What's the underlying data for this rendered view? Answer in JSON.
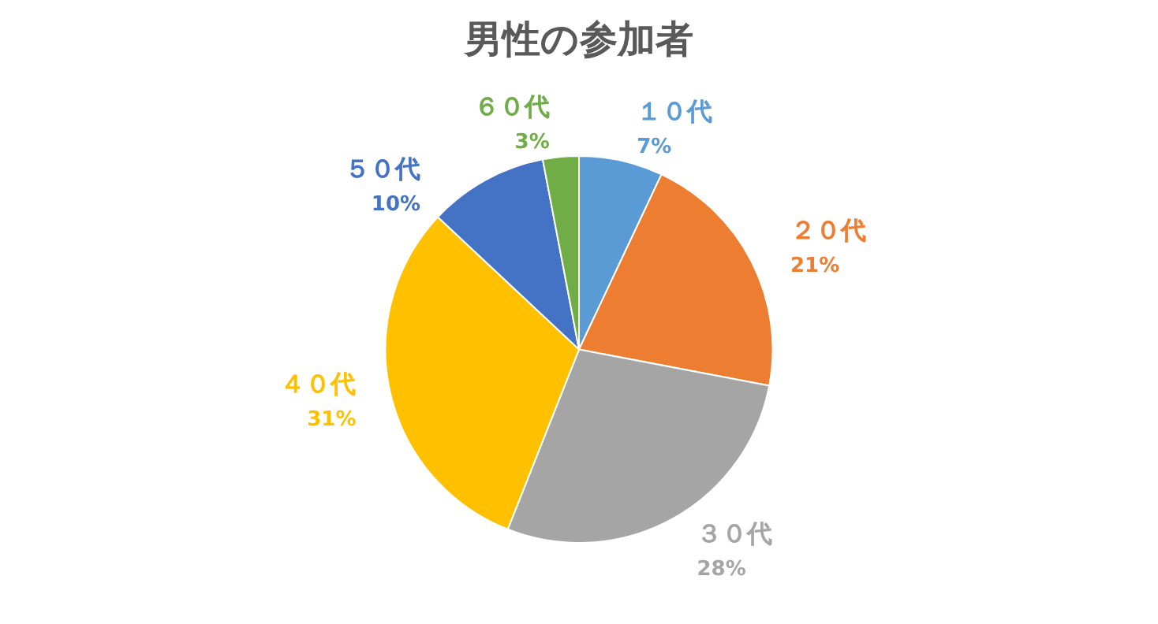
{
  "chart_data": {
    "type": "pie",
    "title": "男性の参加者",
    "categories": [
      "１０代",
      "２０代",
      "３０代",
      "４０代",
      "５０代",
      "６０代"
    ],
    "values": [
      7,
      21,
      28,
      31,
      10,
      3
    ],
    "value_labels": [
      "7%",
      "21%",
      "28%",
      "31%",
      "10%",
      "3%"
    ],
    "colors": [
      "#5b9bd5",
      "#ed7d31",
      "#a5a5a5",
      "#ffc000",
      "#4472c4",
      "#70ad47"
    ],
    "legend": false
  }
}
